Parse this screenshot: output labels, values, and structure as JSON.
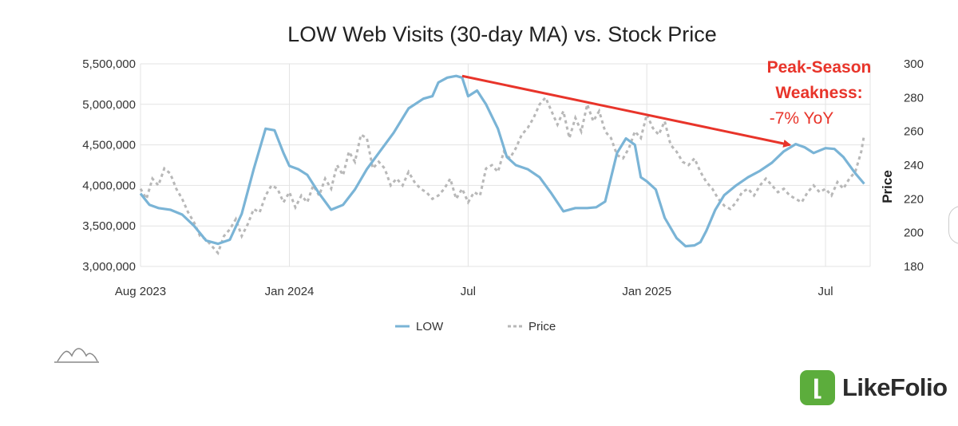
{
  "chart_data": {
    "type": "line",
    "title": "LOW Web Visits (30-day MA) vs. Stock Price",
    "x_tick_labels": [
      "Aug 2023",
      "Jan 2024",
      "Jul",
      "Jan 2025",
      "Jul"
    ],
    "x_tick_months": [
      0,
      5,
      11,
      17,
      23
    ],
    "x_range_months": [
      0,
      24.5
    ],
    "y_left": {
      "label": "",
      "min": 3000000,
      "max": 5500000,
      "ticks": [
        "3,000,000",
        "3,500,000",
        "4,000,000",
        "4,500,000",
        "5,000,000",
        "5,500,000"
      ]
    },
    "y_right": {
      "label": "Price",
      "min": 180,
      "max": 300,
      "ticks": [
        "180",
        "200",
        "220",
        "240",
        "260",
        "280",
        "300"
      ]
    },
    "grid": true,
    "legend_position": "bottom",
    "series": [
      {
        "name": "LOW",
        "axis": "left",
        "color": "#7ab4d6",
        "style": "solid",
        "x": [
          0,
          0.3,
          0.6,
          1,
          1.4,
          1.8,
          2.2,
          2.6,
          3,
          3.4,
          3.8,
          4.2,
          4.5,
          4.8,
          5,
          5.3,
          5.6,
          6,
          6.4,
          6.8,
          7.2,
          7.6,
          8,
          8.5,
          9,
          9.5,
          9.8,
          10,
          10.3,
          10.6,
          10.8,
          11,
          11.3,
          11.6,
          12,
          12.3,
          12.6,
          13,
          13.4,
          13.8,
          14.2,
          14.6,
          15,
          15.3,
          15.6,
          16,
          16.3,
          16.6,
          16.8,
          17,
          17.3,
          17.6,
          18,
          18.3,
          18.6,
          18.8,
          19,
          19.3,
          19.6,
          20,
          20.4,
          20.8,
          21.2,
          21.6,
          22,
          22.3,
          22.6,
          23,
          23.3,
          23.6,
          24,
          24.3
        ],
        "values": [
          3900000,
          3760000,
          3720000,
          3700000,
          3640000,
          3500000,
          3320000,
          3280000,
          3330000,
          3650000,
          4200000,
          4700000,
          4680000,
          4400000,
          4240000,
          4200000,
          4130000,
          3900000,
          3700000,
          3760000,
          3950000,
          4200000,
          4400000,
          4650000,
          4950000,
          5070000,
          5100000,
          5270000,
          5330000,
          5350000,
          5330000,
          5100000,
          5170000,
          5000000,
          4700000,
          4350000,
          4250000,
          4200000,
          4100000,
          3900000,
          3680000,
          3720000,
          3720000,
          3730000,
          3800000,
          4400000,
          4580000,
          4500000,
          4100000,
          4050000,
          3950000,
          3600000,
          3350000,
          3250000,
          3260000,
          3300000,
          3440000,
          3700000,
          3880000,
          4000000,
          4100000,
          4180000,
          4280000,
          4420000,
          4510000,
          4470000,
          4400000,
          4460000,
          4450000,
          4350000,
          4150000,
          4020000
        ]
      },
      {
        "name": "Price",
        "axis": "right",
        "color": "#b8b8b8",
        "style": "dashed",
        "x": [
          0,
          0.2,
          0.4,
          0.6,
          0.8,
          1,
          1.2,
          1.4,
          1.6,
          1.8,
          2,
          2.2,
          2.4,
          2.6,
          2.8,
          3,
          3.2,
          3.4,
          3.6,
          3.8,
          4,
          4.2,
          4.4,
          4.6,
          4.8,
          5,
          5.2,
          5.4,
          5.6,
          5.8,
          6,
          6.2,
          6.4,
          6.6,
          6.8,
          7,
          7.2,
          7.4,
          7.6,
          7.8,
          8,
          8.2,
          8.4,
          8.6,
          8.8,
          9,
          9.2,
          9.4,
          9.6,
          9.8,
          10,
          10.2,
          10.4,
          10.6,
          10.8,
          11,
          11.2,
          11.4,
          11.6,
          11.8,
          12,
          12.2,
          12.4,
          12.6,
          12.8,
          13,
          13.2,
          13.4,
          13.6,
          13.8,
          14,
          14.2,
          14.4,
          14.6,
          14.8,
          15,
          15.2,
          15.4,
          15.6,
          15.8,
          16,
          16.2,
          16.4,
          16.6,
          16.8,
          17,
          17.2,
          17.4,
          17.6,
          17.8,
          18,
          18.2,
          18.4,
          18.6,
          18.8,
          19,
          19.2,
          19.4,
          19.6,
          19.8,
          20,
          20.2,
          20.4,
          20.6,
          20.8,
          21,
          21.2,
          21.4,
          21.6,
          21.8,
          22,
          22.2,
          22.4,
          22.6,
          22.8,
          23,
          23.2,
          23.4,
          23.6,
          23.8,
          24,
          24.2,
          24.3
        ],
        "values": [
          226,
          220,
          232,
          228,
          238,
          235,
          226,
          220,
          212,
          206,
          198,
          196,
          192,
          188,
          198,
          202,
          208,
          198,
          205,
          214,
          212,
          222,
          228,
          226,
          218,
          224,
          215,
          222,
          218,
          228,
          222,
          232,
          226,
          240,
          234,
          248,
          242,
          258,
          256,
          238,
          242,
          238,
          228,
          232,
          228,
          236,
          230,
          226,
          224,
          220,
          222,
          226,
          232,
          220,
          226,
          218,
          224,
          222,
          238,
          240,
          236,
          248,
          244,
          250,
          258,
          262,
          268,
          276,
          280,
          272,
          264,
          272,
          256,
          268,
          260,
          276,
          266,
          272,
          260,
          256,
          246,
          244,
          250,
          260,
          256,
          270,
          262,
          258,
          266,
          252,
          248,
          242,
          240,
          244,
          236,
          230,
          226,
          220,
          216,
          214,
          218,
          224,
          226,
          222,
          228,
          232,
          228,
          224,
          226,
          222,
          220,
          218,
          224,
          228,
          224,
          226,
          222,
          230,
          226,
          232,
          236,
          248,
          258
        ]
      }
    ],
    "annotation": {
      "line1": "Peak-Season",
      "line2": "Weakness:",
      "line3": "-7% YoY",
      "color": "#e8342a",
      "arrow_from": {
        "month": 10.8,
        "value": 5350000
      },
      "arrow_to": {
        "month": 21.8,
        "value": 4500000
      }
    }
  },
  "brand": {
    "name": "LikeFolio",
    "mark": "lf-icon",
    "color": "#5cad3c"
  },
  "watermark": {
    "name": "wave-icon"
  }
}
